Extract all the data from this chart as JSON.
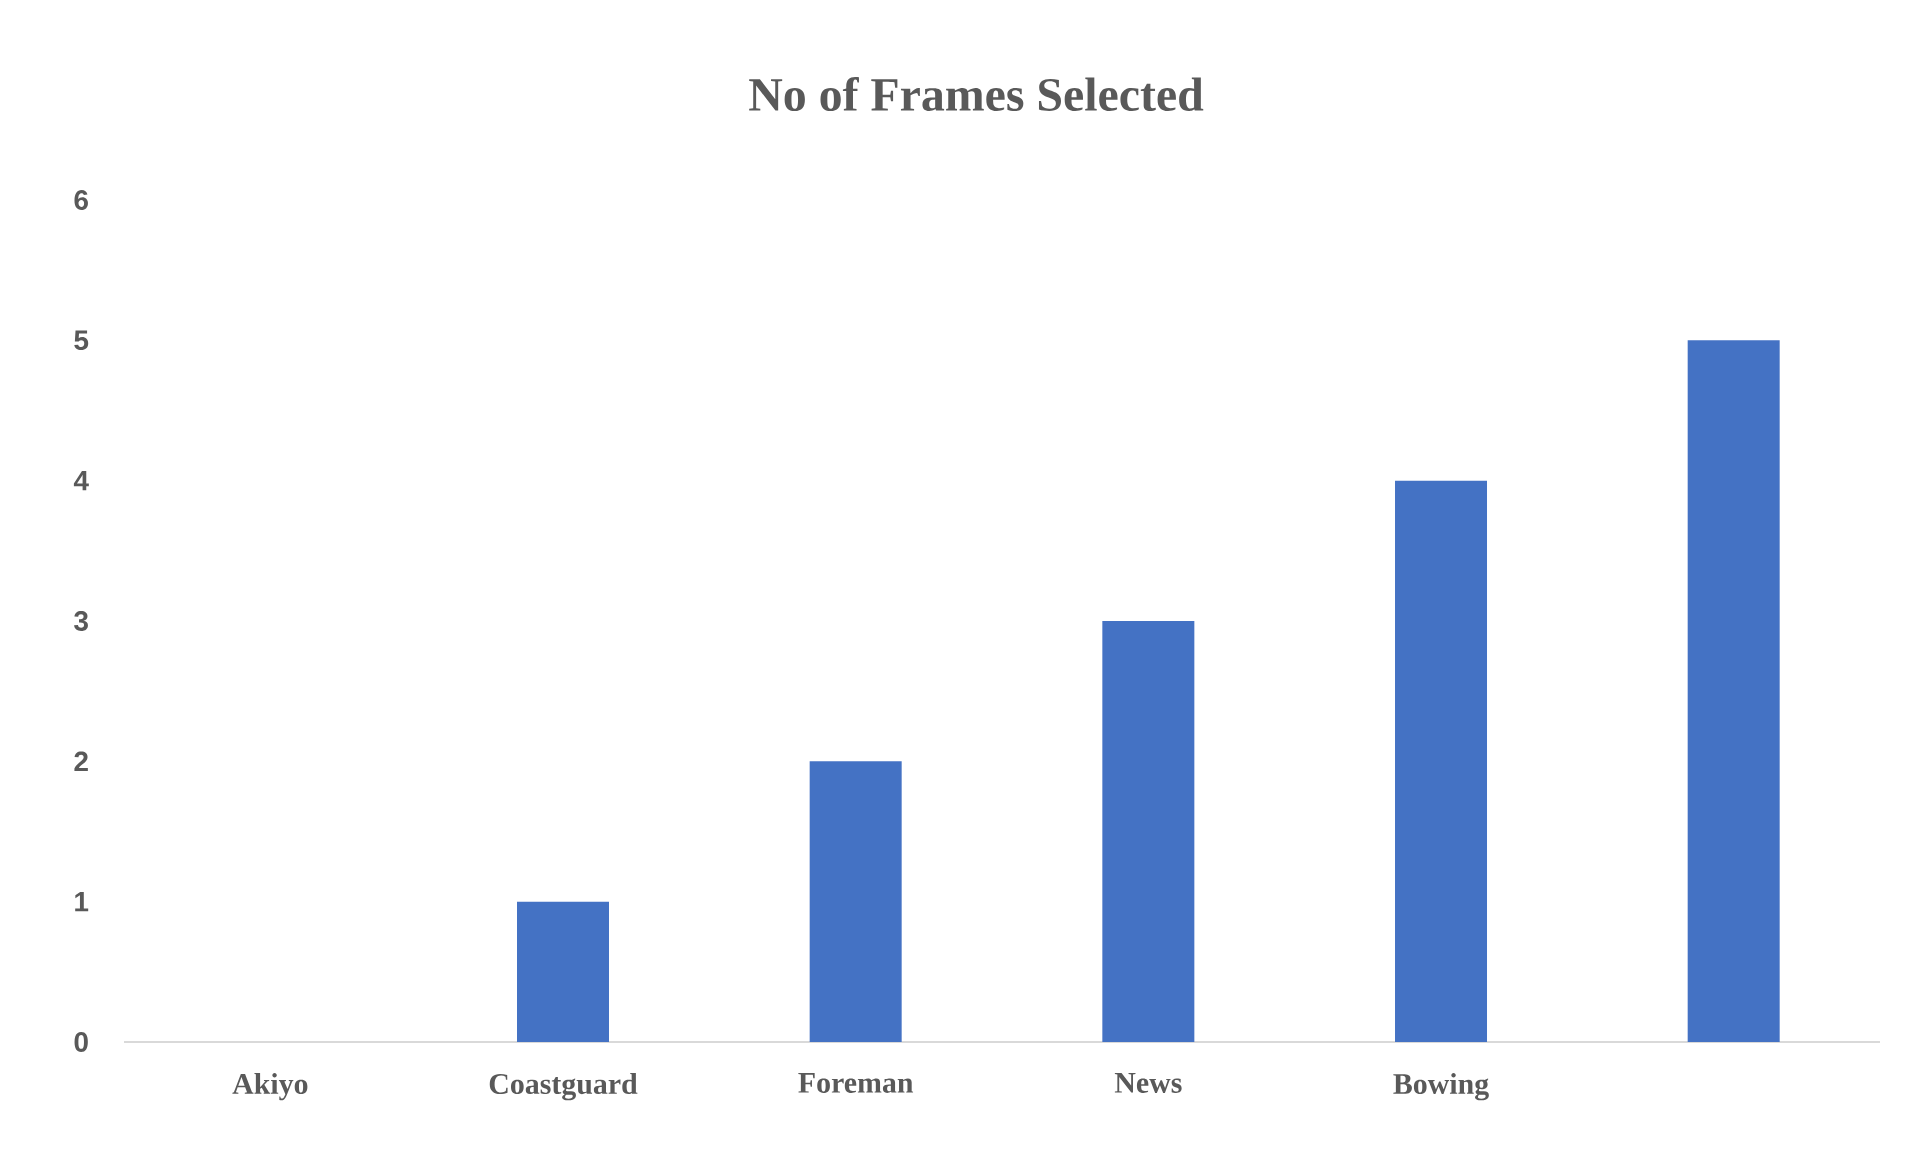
{
  "chart_data": {
    "type": "bar",
    "title": "No of Frames Selected",
    "categories": [
      "Akiyo",
      "Coastguard",
      "Foreman",
      "News",
      "Bowing",
      null
    ],
    "values": [
      0,
      1,
      2,
      3,
      4,
      5
    ],
    "color": "#4472c4",
    "ylim": [
      0,
      6
    ],
    "yticks": [
      0,
      1,
      2,
      3,
      4,
      5,
      6
    ],
    "grid": false
  }
}
